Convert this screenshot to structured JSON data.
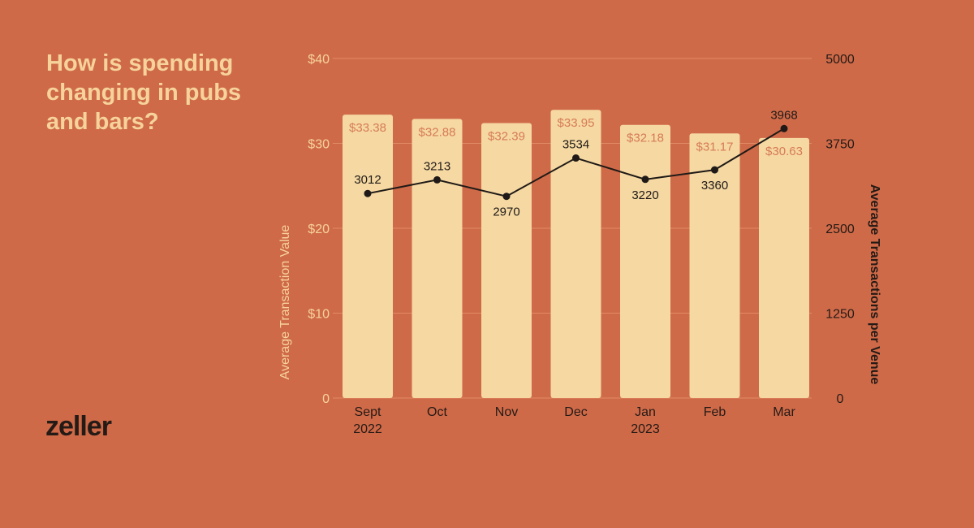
{
  "brand": "zeller",
  "colors": {
    "background": "#CF6A48",
    "bar": "#F5D8A2",
    "bar_label": "#D77B56",
    "line": "#1f1a17",
    "axis_text": "#F6D39A"
  },
  "chart_data": {
    "type": "bar+line",
    "title": "How is spending changing in pubs and bars?",
    "categories": [
      [
        "Sept",
        "2022"
      ],
      [
        "Oct",
        ""
      ],
      [
        "Nov",
        ""
      ],
      [
        "Dec",
        ""
      ],
      [
        "Jan",
        "2023"
      ],
      [
        "Feb",
        ""
      ],
      [
        "Mar",
        ""
      ]
    ],
    "series": [
      {
        "name": "Average Transaction Value",
        "type": "bar",
        "axis": "left",
        "values": [
          33.38,
          32.88,
          32.39,
          33.95,
          32.18,
          31.17,
          30.63
        ],
        "labels": [
          "$33.38",
          "$32.88",
          "$32.39",
          "$33.95",
          "$32.18",
          "$31.17",
          "$30.63"
        ]
      },
      {
        "name": "Average Transactions per Venue",
        "type": "line",
        "axis": "right",
        "values": [
          3012,
          3213,
          2970,
          3534,
          3220,
          3360,
          3968
        ],
        "labels": [
          "3012",
          "3213",
          "2970",
          "3534",
          "3220",
          "3360",
          "3968"
        ],
        "label_position": [
          "above",
          "above",
          "below",
          "above",
          "below",
          "below",
          "above"
        ]
      }
    ],
    "ylabel": "Average Transaction Value",
    "ylim": [
      0,
      40
    ],
    "yticks": [
      0,
      10,
      20,
      30,
      40
    ],
    "ytick_labels": [
      "0",
      "$10",
      "$20",
      "$30",
      "$40"
    ],
    "y2label": "Average Transactions per Venue",
    "y2lim": [
      0,
      5000
    ],
    "y2ticks": [
      0,
      1250,
      2500,
      3750,
      5000
    ],
    "y2tick_labels": [
      "0",
      "1250",
      "2500",
      "3750",
      "5000"
    ],
    "grid": true
  }
}
